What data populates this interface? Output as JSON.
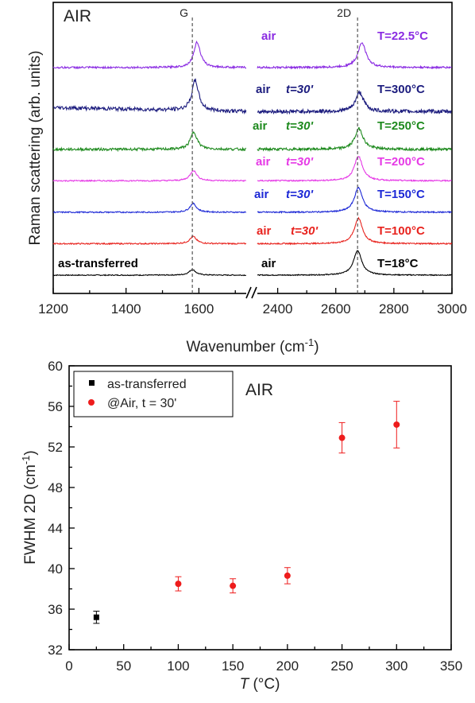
{
  "chart_data": [
    {
      "type": "line",
      "title": "AIR",
      "xlabel": "Wavenumber (cm-1)",
      "ylabel": "Raman scattering (arb. units)",
      "x_ticks": [
        "1200",
        "1400",
        "1600",
        "2400",
        "2600",
        "2800",
        "3000"
      ],
      "x_break": [
        1730,
        2330
      ],
      "xlim": [
        1200,
        3000
      ],
      "peak_markers": [
        {
          "label": "G",
          "x": 1582
        },
        {
          "label": "2D",
          "x": 2675
        }
      ],
      "series": [
        {
          "color": "#000000",
          "texts": [
            "as-transferred",
            "air",
            "T=18°C"
          ],
          "offset": 0,
          "g_amp": 0.35,
          "g_pos": 1582,
          "d_amp": 1.55,
          "d_pos": 2675,
          "noise": 0.03
        },
        {
          "color": "#e8231e",
          "texts": [
            "air",
            "t=30'",
            "T=100°C"
          ],
          "offset": 1,
          "g_amp": 0.45,
          "g_pos": 1584,
          "d_amp": 1.6,
          "d_pos": 2678,
          "noise": 0.04
        },
        {
          "color": "#1c28d6",
          "texts": [
            "air",
            "t=30'",
            "T=150°C"
          ],
          "offset": 2,
          "g_amp": 0.55,
          "g_pos": 1584,
          "d_amp": 1.55,
          "d_pos": 2678,
          "noise": 0.04
        },
        {
          "color": "#e63ae6",
          "texts": [
            "air",
            "t=30'",
            "T=200°C"
          ],
          "offset": 3,
          "g_amp": 0.65,
          "g_pos": 1585,
          "d_amp": 1.55,
          "d_pos": 2678,
          "noise": 0.04
        },
        {
          "color": "#1e8a1e",
          "texts": [
            "air",
            "t=30'",
            "T=250°C"
          ],
          "offset": 4,
          "g_amp": 1.1,
          "g_pos": 1586,
          "d_amp": 1.3,
          "d_pos": 2680,
          "noise": 0.08
        },
        {
          "color": "#1c1c7e",
          "texts": [
            "air",
            "t=30'",
            "T=300°C"
          ],
          "offset": 5.2,
          "g_amp": 1.9,
          "g_pos": 1590,
          "d_amp": 1.2,
          "d_pos": 2682,
          "noise": 0.12
        },
        {
          "color": "#8a2be2",
          "texts": [
            "air",
            "",
            "T=22.5°C"
          ],
          "offset": 6.6,
          "g_amp": 1.6,
          "g_pos": 1595,
          "d_amp": 1.55,
          "d_pos": 2690,
          "noise": 0.06
        }
      ]
    },
    {
      "type": "scatter",
      "title": "AIR",
      "xlabel": "T (°C)",
      "ylabel": "FWHM 2D (cm-1)",
      "xlim": [
        0,
        350
      ],
      "ylim": [
        32,
        60
      ],
      "x_ticks": [
        "0",
        "50",
        "100",
        "150",
        "200",
        "250",
        "300",
        "350"
      ],
      "y_ticks": [
        "32",
        "36",
        "40",
        "44",
        "48",
        "52",
        "56",
        "60"
      ],
      "legend_position": "top-left",
      "series": [
        {
          "name": "as-transferred",
          "marker": "square",
          "color": "#000000",
          "points": [
            {
              "x": 25,
              "y": 35.2,
              "err": 0.6
            }
          ]
        },
        {
          "name": "@Air, t = 30'",
          "marker": "circle",
          "color": "#ee1c1c",
          "points": [
            {
              "x": 100,
              "y": 38.5,
              "err": 0.7
            },
            {
              "x": 150,
              "y": 38.3,
              "err": 0.7
            },
            {
              "x": 200,
              "y": 39.3,
              "err": 0.8
            },
            {
              "x": 250,
              "y": 52.9,
              "err": 1.5
            },
            {
              "x": 300,
              "y": 54.2,
              "err": 2.3
            }
          ]
        }
      ]
    }
  ]
}
